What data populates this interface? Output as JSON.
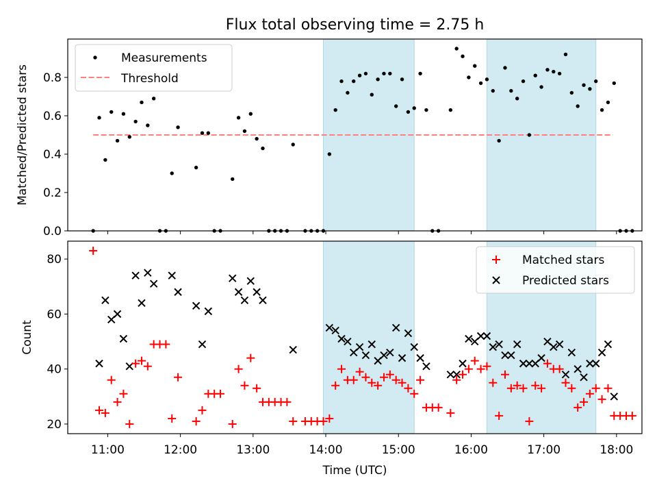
{
  "figure": {
    "title": "Flux total observing time = 2.75 h",
    "xlabel": "Time (UTC)"
  },
  "colors": {
    "measurement": "#000000",
    "threshold": "#ff7f7f",
    "matched": "#ff0000",
    "predicted": "#000000",
    "shade": "#add8e6"
  },
  "chart_data": [
    {
      "type": "scatter",
      "ylabel": "Matched/Predicted stars",
      "xlim": [
        "10:27",
        "18:21"
      ],
      "ylim": [
        0,
        1.0
      ],
      "yticks": [
        0.0,
        0.2,
        0.4,
        0.6,
        0.8
      ],
      "ytick_labels": [
        "0.0",
        "0.2",
        "0.4",
        "0.6",
        "0.8"
      ],
      "shaded_intervals": [
        [
          "13:58",
          "15:13"
        ],
        [
          "16:13",
          "17:43"
        ]
      ],
      "threshold": 0.5,
      "threshold_x": [
        "10:48",
        "17:57"
      ],
      "legend": {
        "location": "upper left",
        "entries": [
          "Measurements",
          "Threshold"
        ]
      },
      "series": [
        {
          "name": "Measurements",
          "points": [
            [
              "10:48",
              0.0
            ],
            [
              "10:53",
              0.59
            ],
            [
              "10:58",
              0.37
            ],
            [
              "11:03",
              0.62
            ],
            [
              "11:08",
              0.47
            ],
            [
              "11:13",
              0.61
            ],
            [
              "11:18",
              0.49
            ],
            [
              "11:23",
              0.57
            ],
            [
              "11:28",
              0.67
            ],
            [
              "11:33",
              0.55
            ],
            [
              "11:38",
              0.69
            ],
            [
              "11:43",
              0.0
            ],
            [
              "11:48",
              0.0
            ],
            [
              "11:53",
              0.3
            ],
            [
              "11:58",
              0.54
            ],
            [
              "12:13",
              0.33
            ],
            [
              "12:18",
              0.51
            ],
            [
              "12:23",
              0.51
            ],
            [
              "12:28",
              0.0
            ],
            [
              "12:33",
              0.0
            ],
            [
              "12:43",
              0.27
            ],
            [
              "12:48",
              0.59
            ],
            [
              "12:53",
              0.52
            ],
            [
              "12:58",
              0.61
            ],
            [
              "13:03",
              0.48
            ],
            [
              "13:08",
              0.43
            ],
            [
              "13:13",
              0.0
            ],
            [
              "13:18",
              0.0
            ],
            [
              "13:23",
              0.0
            ],
            [
              "13:28",
              0.0
            ],
            [
              "13:33",
              0.45
            ],
            [
              "13:43",
              0.0
            ],
            [
              "13:48",
              0.0
            ],
            [
              "13:53",
              0.0
            ],
            [
              "13:58",
              0.0
            ],
            [
              "14:03",
              0.4
            ],
            [
              "14:08",
              0.63
            ],
            [
              "14:13",
              0.78
            ],
            [
              "14:18",
              0.72
            ],
            [
              "14:23",
              0.78
            ],
            [
              "14:28",
              0.81
            ],
            [
              "14:33",
              0.82
            ],
            [
              "14:38",
              0.71
            ],
            [
              "14:43",
              0.79
            ],
            [
              "14:48",
              0.82
            ],
            [
              "14:53",
              0.82
            ],
            [
              "14:58",
              0.65
            ],
            [
              "15:03",
              0.79
            ],
            [
              "15:08",
              0.62
            ],
            [
              "15:13",
              0.64
            ],
            [
              "15:18",
              0.82
            ],
            [
              "15:23",
              0.63
            ],
            [
              "15:28",
              0.0
            ],
            [
              "15:33",
              0.0
            ],
            [
              "15:43",
              0.63
            ],
            [
              "15:48",
              0.95
            ],
            [
              "15:53",
              0.91
            ],
            [
              "15:58",
              0.8
            ],
            [
              "16:03",
              0.86
            ],
            [
              "16:08",
              0.77
            ],
            [
              "16:13",
              0.79
            ],
            [
              "16:18",
              0.73
            ],
            [
              "16:23",
              0.47
            ],
            [
              "16:28",
              0.85
            ],
            [
              "16:33",
              0.73
            ],
            [
              "16:38",
              0.69
            ],
            [
              "16:43",
              0.78
            ],
            [
              "16:48",
              0.5
            ],
            [
              "16:53",
              0.81
            ],
            [
              "16:58",
              0.75
            ],
            [
              "17:03",
              0.84
            ],
            [
              "17:08",
              0.83
            ],
            [
              "17:13",
              0.82
            ],
            [
              "17:18",
              0.92
            ],
            [
              "17:23",
              0.72
            ],
            [
              "17:28",
              0.65
            ],
            [
              "17:33",
              0.76
            ],
            [
              "17:38",
              0.74
            ],
            [
              "17:43",
              0.78
            ],
            [
              "17:48",
              0.63
            ],
            [
              "17:53",
              0.67
            ],
            [
              "17:58",
              0.77
            ],
            [
              "18:03",
              0.0
            ],
            [
              "18:08",
              0.0
            ],
            [
              "18:13",
              0.0
            ]
          ]
        }
      ]
    },
    {
      "type": "scatter",
      "ylabel": "Count",
      "xlim": [
        "10:27",
        "18:21"
      ],
      "ylim": [
        16.5,
        86.5
      ],
      "yticks": [
        20,
        40,
        60,
        80
      ],
      "ytick_labels": [
        "20",
        "40",
        "60",
        "80"
      ],
      "xticks": [
        "11:00",
        "12:00",
        "13:00",
        "14:00",
        "15:00",
        "16:00",
        "17:00",
        "18:00"
      ],
      "shaded_intervals": [
        [
          "13:58",
          "15:13"
        ],
        [
          "16:13",
          "17:43"
        ]
      ],
      "legend": {
        "location": "upper right",
        "entries": [
          "Matched stars",
          "Predicted stars"
        ]
      },
      "series": [
        {
          "name": "Matched stars",
          "marker": "+",
          "points": [
            [
              "10:48",
              83
            ],
            [
              "10:53",
              25
            ],
            [
              "10:58",
              24
            ],
            [
              "11:03",
              36
            ],
            [
              "11:08",
              28
            ],
            [
              "11:13",
              31
            ],
            [
              "11:18",
              20
            ],
            [
              "11:23",
              42
            ],
            [
              "11:28",
              43
            ],
            [
              "11:33",
              41
            ],
            [
              "11:38",
              49
            ],
            [
              "11:43",
              49
            ],
            [
              "11:48",
              49
            ],
            [
              "11:53",
              22
            ],
            [
              "11:58",
              37
            ],
            [
              "12:13",
              21
            ],
            [
              "12:18",
              25
            ],
            [
              "12:23",
              31
            ],
            [
              "12:28",
              31
            ],
            [
              "12:33",
              31
            ],
            [
              "12:43",
              20
            ],
            [
              "12:48",
              40
            ],
            [
              "12:53",
              34
            ],
            [
              "12:58",
              44
            ],
            [
              "13:03",
              33
            ],
            [
              "13:08",
              28
            ],
            [
              "13:13",
              28
            ],
            [
              "13:18",
              28
            ],
            [
              "13:23",
              28
            ],
            [
              "13:28",
              28
            ],
            [
              "13:33",
              21
            ],
            [
              "13:43",
              21
            ],
            [
              "13:48",
              21
            ],
            [
              "13:53",
              21
            ],
            [
              "13:58",
              21
            ],
            [
              "14:03",
              22
            ],
            [
              "14:08",
              34
            ],
            [
              "14:13",
              40
            ],
            [
              "14:18",
              36
            ],
            [
              "14:23",
              36
            ],
            [
              "14:28",
              39
            ],
            [
              "14:33",
              37
            ],
            [
              "14:38",
              35
            ],
            [
              "14:43",
              34
            ],
            [
              "14:48",
              37
            ],
            [
              "14:53",
              38
            ],
            [
              "14:58",
              36
            ],
            [
              "15:03",
              35
            ],
            [
              "15:08",
              33
            ],
            [
              "15:13",
              31
            ],
            [
              "15:18",
              36
            ],
            [
              "15:23",
              26
            ],
            [
              "15:28",
              26
            ],
            [
              "15:33",
              26
            ],
            [
              "15:43",
              24
            ],
            [
              "15:48",
              36
            ],
            [
              "15:53",
              38
            ],
            [
              "15:58",
              40
            ],
            [
              "16:03",
              43
            ],
            [
              "16:08",
              40
            ],
            [
              "16:13",
              41
            ],
            [
              "16:18",
              35
            ],
            [
              "16:23",
              23
            ],
            [
              "16:28",
              38
            ],
            [
              "16:33",
              33
            ],
            [
              "16:38",
              34
            ],
            [
              "16:43",
              33
            ],
            [
              "16:48",
              21
            ],
            [
              "16:53",
              34
            ],
            [
              "16:58",
              33
            ],
            [
              "17:03",
              42
            ],
            [
              "17:08",
              40
            ],
            [
              "17:13",
              40
            ],
            [
              "17:18",
              35
            ],
            [
              "17:23",
              33
            ],
            [
              "17:28",
              26
            ],
            [
              "17:33",
              28
            ],
            [
              "17:38",
              31
            ],
            [
              "17:43",
              33
            ],
            [
              "17:48",
              29
            ],
            [
              "17:53",
              33
            ],
            [
              "17:58",
              23
            ],
            [
              "18:03",
              23
            ],
            [
              "18:08",
              23
            ],
            [
              "18:13",
              23
            ]
          ]
        },
        {
          "name": "Predicted stars",
          "marker": "x",
          "points": [
            [
              "10:53",
              42
            ],
            [
              "10:58",
              65
            ],
            [
              "11:03",
              58
            ],
            [
              "11:08",
              60
            ],
            [
              "11:13",
              51
            ],
            [
              "11:18",
              41
            ],
            [
              "11:23",
              74
            ],
            [
              "11:28",
              64
            ],
            [
              "11:33",
              75
            ],
            [
              "11:38",
              71
            ],
            [
              "11:53",
              74
            ],
            [
              "11:58",
              68
            ],
            [
              "12:13",
              63
            ],
            [
              "12:18",
              49
            ],
            [
              "12:23",
              61
            ],
            [
              "12:43",
              73
            ],
            [
              "12:48",
              68
            ],
            [
              "12:53",
              65
            ],
            [
              "12:58",
              72
            ],
            [
              "13:03",
              68
            ],
            [
              "13:08",
              65
            ],
            [
              "13:33",
              47
            ],
            [
              "14:03",
              55
            ],
            [
              "14:08",
              54
            ],
            [
              "14:13",
              51
            ],
            [
              "14:18",
              50
            ],
            [
              "14:23",
              46
            ],
            [
              "14:28",
              48
            ],
            [
              "14:33",
              45
            ],
            [
              "14:38",
              49
            ],
            [
              "14:43",
              43
            ],
            [
              "14:48",
              45
            ],
            [
              "14:53",
              46
            ],
            [
              "14:58",
              55
            ],
            [
              "15:03",
              44
            ],
            [
              "15:08",
              53
            ],
            [
              "15:13",
              48
            ],
            [
              "15:18",
              44
            ],
            [
              "15:23",
              41
            ],
            [
              "15:43",
              38
            ],
            [
              "15:48",
              38
            ],
            [
              "15:53",
              42
            ],
            [
              "15:58",
              51
            ],
            [
              "16:03",
              50
            ],
            [
              "16:08",
              52
            ],
            [
              "16:13",
              52
            ],
            [
              "16:18",
              48
            ],
            [
              "16:23",
              49
            ],
            [
              "16:28",
              45
            ],
            [
              "16:33",
              45
            ],
            [
              "16:38",
              49
            ],
            [
              "16:43",
              42
            ],
            [
              "16:48",
              42
            ],
            [
              "16:53",
              42
            ],
            [
              "16:58",
              44
            ],
            [
              "17:03",
              50
            ],
            [
              "17:08",
              48
            ],
            [
              "17:13",
              49
            ],
            [
              "17:18",
              38
            ],
            [
              "17:23",
              46
            ],
            [
              "17:28",
              40
            ],
            [
              "17:33",
              37
            ],
            [
              "17:38",
              42
            ],
            [
              "17:43",
              42
            ],
            [
              "17:48",
              46
            ],
            [
              "17:53",
              49
            ],
            [
              "17:58",
              30
            ]
          ]
        }
      ]
    }
  ]
}
